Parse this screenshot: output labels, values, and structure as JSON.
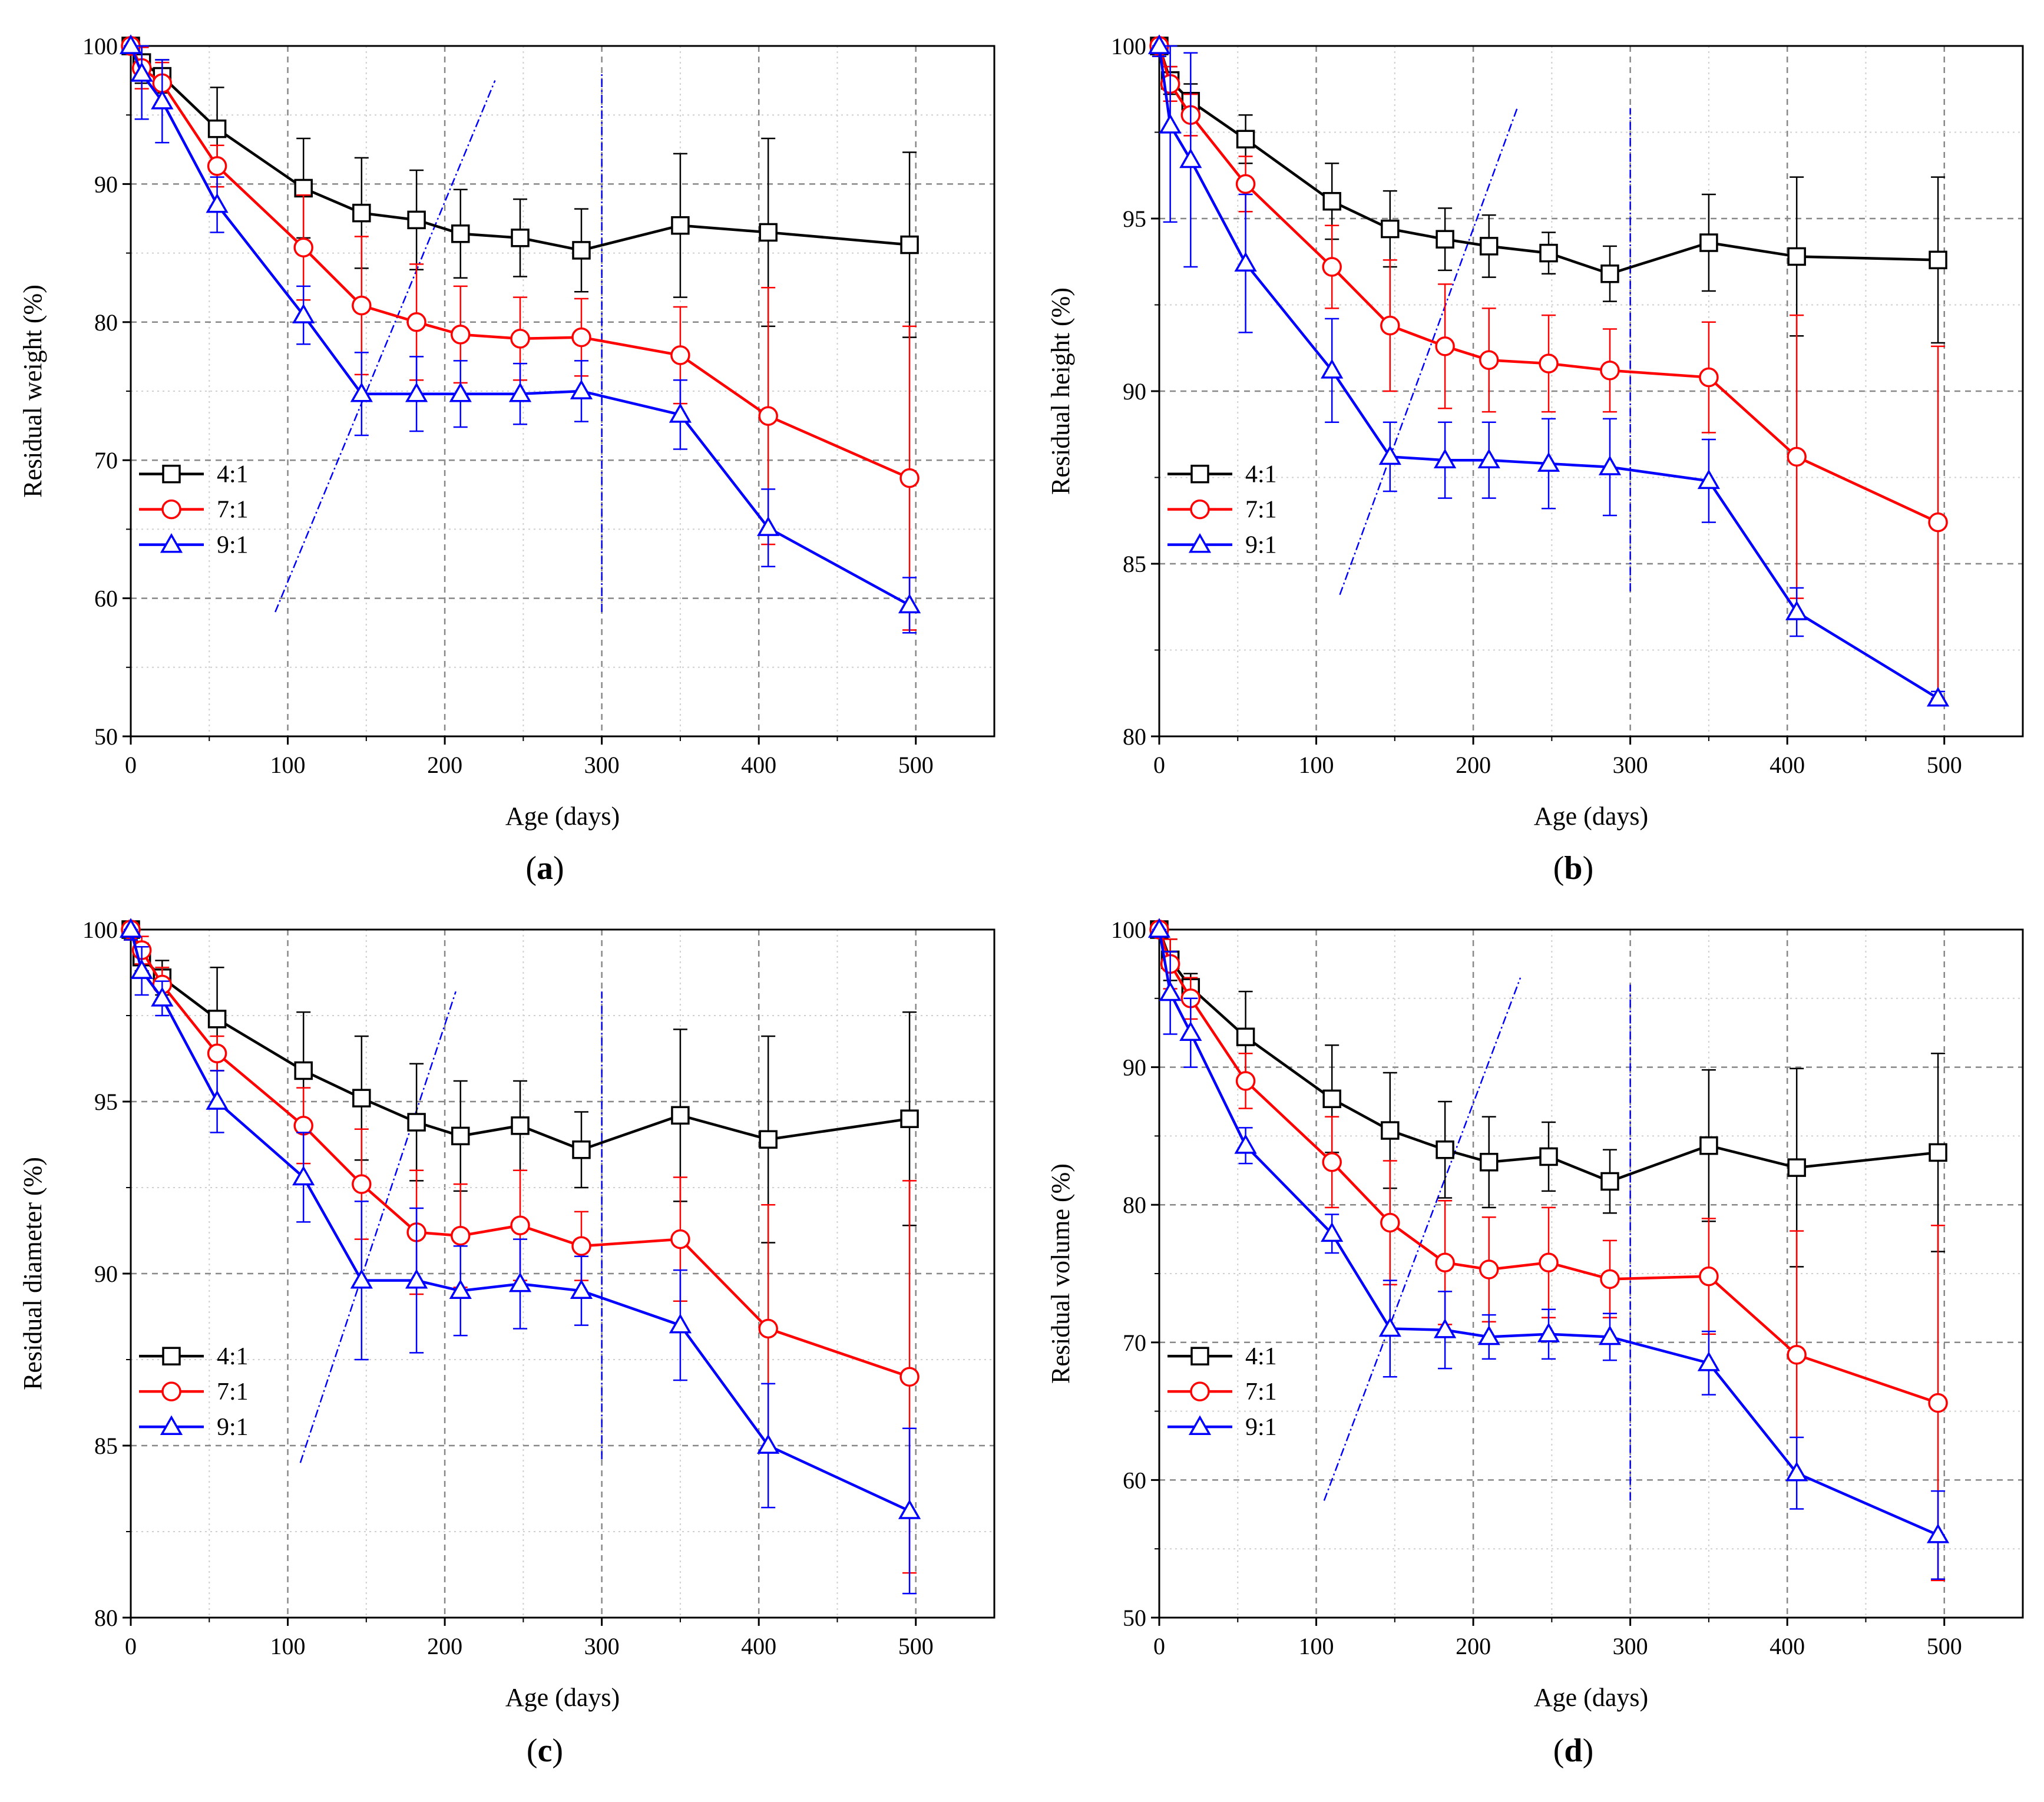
{
  "figure": {
    "series_colors": {
      "4:1": "#000000",
      "7:1": "#ff0000",
      "9:1": "#0000ff"
    },
    "series_markers": {
      "4:1": "square",
      "7:1": "circle",
      "9:1": "triangle"
    }
  },
  "chart_data": [
    {
      "type": "line",
      "caption": "a",
      "title": "",
      "xlabel": "Age (days)",
      "ylabel": "Residual weight (%)",
      "xlim": [
        0,
        550
      ],
      "ylim": [
        50,
        100
      ],
      "xticks": [
        0,
        100,
        200,
        300,
        400,
        500
      ],
      "yticks": [
        50,
        60,
        70,
        80,
        90,
        100
      ],
      "x": [
        0,
        7,
        20,
        55,
        110,
        147,
        182,
        210,
        248,
        287,
        350,
        406,
        496
      ],
      "series": [
        {
          "name": "4:1",
          "values": [
            100,
            98.8,
            97.8,
            94.0,
            89.7,
            87.9,
            87.4,
            86.4,
            86.1,
            85.2,
            87.0,
            86.5,
            85.6
          ],
          "errors": [
            0.5,
            1.5,
            1.2,
            3.0,
            3.6,
            4.0,
            3.6,
            3.2,
            2.8,
            3.0,
            5.2,
            6.8,
            6.7
          ]
        },
        {
          "name": "7:1",
          "values": [
            100,
            98.4,
            97.3,
            91.3,
            85.4,
            81.2,
            80.0,
            79.1,
            78.8,
            78.9,
            77.6,
            73.2,
            68.7
          ],
          "errors": [
            0.5,
            1.5,
            1.5,
            1.5,
            3.8,
            5.0,
            4.2,
            3.5,
            3.0,
            2.8,
            3.5,
            9.3,
            11.0
          ]
        },
        {
          "name": "9:1",
          "values": [
            100,
            98.0,
            96.0,
            88.5,
            80.5,
            74.8,
            74.8,
            74.8,
            74.8,
            75.0,
            73.3,
            65.1,
            59.5
          ],
          "errors": [
            0.5,
            3.3,
            3.0,
            2.0,
            2.1,
            3.0,
            2.7,
            2.4,
            2.2,
            2.2,
            2.5,
            2.8,
            2.0
          ]
        }
      ],
      "guide_lines": {
        "diagonal": [
          [
            92,
            59
          ],
          [
            232,
            97.5
          ]
        ],
        "vertical": [
          [
            300,
            59
          ],
          [
            300,
            98
          ]
        ]
      },
      "legend": "middle-left"
    },
    {
      "type": "line",
      "caption": "b",
      "title": "",
      "xlabel": "Age (days)",
      "ylabel": "Residual height (%)",
      "xlim": [
        0,
        550
      ],
      "ylim": [
        80,
        100
      ],
      "xticks": [
        0,
        100,
        200,
        300,
        400,
        500
      ],
      "yticks": [
        80,
        85,
        90,
        95,
        100
      ],
      "x": [
        0,
        7,
        20,
        55,
        110,
        147,
        182,
        210,
        248,
        287,
        350,
        406,
        496
      ],
      "series": [
        {
          "name": "4:1",
          "values": [
            100,
            99.0,
            98.4,
            97.3,
            95.5,
            94.7,
            94.4,
            94.2,
            94.0,
            93.4,
            94.3,
            93.9,
            93.8
          ],
          "errors": [
            0.3,
            0.4,
            0.5,
            0.7,
            1.1,
            1.1,
            0.9,
            0.9,
            0.6,
            0.8,
            1.4,
            2.3,
            2.4
          ]
        },
        {
          "name": "7:1",
          "values": [
            100,
            98.9,
            98.0,
            96.0,
            93.6,
            91.9,
            91.3,
            90.9,
            90.8,
            90.6,
            90.4,
            88.1,
            86.2
          ],
          "errors": [
            0.3,
            0.5,
            0.6,
            0.8,
            1.2,
            1.9,
            1.8,
            1.5,
            1.4,
            1.2,
            1.6,
            4.1,
            5.1
          ]
        },
        {
          "name": "9:1",
          "values": [
            100,
            97.7,
            96.7,
            93.7,
            90.6,
            88.1,
            88.0,
            88.0,
            87.9,
            87.8,
            87.4,
            83.6,
            81.1
          ],
          "errors": [
            0.3,
            2.8,
            3.1,
            2.0,
            1.5,
            1.0,
            1.1,
            1.1,
            1.3,
            1.4,
            1.2,
            0.7,
            0.2
          ]
        }
      ],
      "guide_lines": {
        "diagonal": [
          [
            115,
            84.1
          ],
          [
            228,
            98.2
          ]
        ],
        "vertical": [
          [
            300,
            84.2
          ],
          [
            300,
            98.2
          ]
        ]
      },
      "legend": "middle-left"
    },
    {
      "type": "line",
      "caption": "c",
      "title": "",
      "xlabel": "Age (days)",
      "ylabel": "Residual diameter (%)",
      "xlim": [
        0,
        550
      ],
      "ylim": [
        80,
        100
      ],
      "xticks": [
        0,
        100,
        200,
        300,
        400,
        500
      ],
      "yticks": [
        80,
        85,
        90,
        95,
        100
      ],
      "x": [
        0,
        7,
        20,
        55,
        110,
        147,
        182,
        210,
        248,
        287,
        350,
        406,
        496
      ],
      "series": [
        {
          "name": "4:1",
          "values": [
            100,
            99.2,
            98.6,
            97.4,
            95.9,
            95.1,
            94.4,
            94.0,
            94.3,
            93.6,
            94.6,
            93.9,
            94.5
          ],
          "errors": [
            0.3,
            0.4,
            0.5,
            1.5,
            1.7,
            1.8,
            1.7,
            1.6,
            1.3,
            1.1,
            2.5,
            3.0,
            3.1
          ]
        },
        {
          "name": "7:1",
          "values": [
            100,
            99.4,
            98.4,
            96.4,
            94.3,
            92.6,
            91.2,
            91.1,
            91.4,
            90.8,
            91.0,
            88.4,
            87.0
          ],
          "errors": [
            0.3,
            0.4,
            0.5,
            0.5,
            1.1,
            1.6,
            1.8,
            1.5,
            1.6,
            1.0,
            1.8,
            3.6,
            5.7
          ]
        },
        {
          "name": "9:1",
          "values": [
            100,
            98.8,
            98.0,
            95.0,
            92.8,
            89.8,
            89.8,
            89.5,
            89.7,
            89.5,
            88.5,
            85.0,
            83.1
          ],
          "errors": [
            0.3,
            0.7,
            0.5,
            0.9,
            1.3,
            2.3,
            2.1,
            1.3,
            1.3,
            1.0,
            1.6,
            1.8,
            2.4
          ]
        }
      ],
      "guide_lines": {
        "diagonal": [
          [
            108,
            84.5
          ],
          [
            207,
            98.2
          ]
        ],
        "vertical": [
          [
            300,
            84.6
          ],
          [
            300,
            98.2
          ]
        ]
      },
      "legend": "middle-left"
    },
    {
      "type": "line",
      "caption": "d",
      "title": "",
      "xlabel": "Age (days)",
      "ylabel": "Residual volume (%)",
      "xlim": [
        0,
        550
      ],
      "ylim": [
        50,
        100
      ],
      "xticks": [
        0,
        100,
        200,
        300,
        400,
        500
      ],
      "yticks": [
        50,
        60,
        70,
        80,
        90,
        100
      ],
      "x": [
        0,
        7,
        20,
        55,
        110,
        147,
        182,
        210,
        248,
        287,
        350,
        406,
        496
      ],
      "series": [
        {
          "name": "4:1",
          "values": [
            100,
            97.8,
            95.8,
            92.2,
            87.7,
            85.4,
            84.0,
            83.1,
            83.5,
            81.7,
            84.3,
            82.7,
            83.8
          ],
          "errors": [
            0.5,
            1.5,
            1.0,
            3.3,
            3.9,
            4.2,
            3.5,
            3.3,
            2.5,
            2.3,
            5.5,
            7.2,
            7.2
          ]
        },
        {
          "name": "7:1",
          "values": [
            100,
            97.5,
            95.0,
            89.0,
            83.1,
            78.7,
            75.8,
            75.3,
            75.8,
            74.6,
            74.8,
            69.1,
            65.6
          ],
          "errors": [
            0.5,
            1.8,
            1.5,
            2.0,
            3.3,
            4.5,
            4.5,
            3.8,
            4.0,
            2.8,
            4.2,
            9.0,
            12.9
          ]
        },
        {
          "name": "9:1",
          "values": [
            100,
            95.4,
            92.5,
            84.3,
            77.9,
            71.0,
            70.9,
            70.4,
            70.6,
            70.4,
            68.5,
            60.5,
            56.0
          ],
          "errors": [
            0.5,
            3.0,
            2.5,
            1.3,
            1.4,
            3.5,
            2.8,
            1.6,
            1.8,
            1.7,
            2.3,
            2.6,
            3.2
          ]
        }
      ],
      "guide_lines": {
        "diagonal": [
          [
            105,
            58.5
          ],
          [
            230,
            96.5
          ]
        ],
        "vertical": [
          [
            300,
            58.5
          ],
          [
            300,
            96
          ]
        ]
      },
      "legend": "middle-left"
    }
  ]
}
